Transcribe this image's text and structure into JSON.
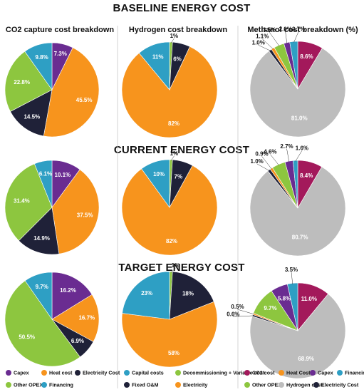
{
  "sections": [
    {
      "title": "BASELINE ENERGY COST"
    },
    {
      "title": "CURRENT ENERGY COST"
    },
    {
      "title": "TARGET ENERGY COST"
    }
  ],
  "column_titles": [
    "CO2 capture cost breakdown",
    "Hydrogen cost breakdown",
    "Methanol cost breakdown (%)"
  ],
  "legends": [
    [
      {
        "label": "Capex",
        "color": "#6a2c91"
      },
      {
        "label": "Heat cost",
        "color": "#f7941d"
      },
      {
        "label": "Electricity Cost",
        "color": "#1f2138"
      },
      {
        "label": "Other OPEX",
        "color": "#8dc63f"
      },
      {
        "label": "Financing",
        "color": "#2e9fc4"
      }
    ],
    [
      {
        "label": "Capital costs",
        "color": "#2e9fc4"
      },
      {
        "label": "Decommissioning + Variable cost",
        "color": "#8dc63f"
      },
      {
        "label": "Fixed O&M",
        "color": "#1f2138"
      },
      {
        "label": "Electricity",
        "color": "#f7941d"
      }
    ],
    [
      {
        "label": "CO2 cost",
        "color": "#a3195b"
      },
      {
        "label": "Heat Cost",
        "color": "#f7941d"
      },
      {
        "label": "Capex",
        "color": "#6a2c91"
      },
      {
        "label": "Financing",
        "color": "#2e9fc4"
      },
      {
        "label": "Other OPEX",
        "color": "#8dc63f"
      },
      {
        "label": "Hydrogen cost",
        "color": "#bdbdbd"
      },
      {
        "label": "Electricity Cost",
        "color": "#1f2138"
      }
    ]
  ],
  "chart_data": [
    {
      "type": "pie",
      "section": "BASELINE ENERGY COST",
      "title": "CO2 capture cost breakdown",
      "slices": [
        {
          "label": "Capex",
          "value": 7.3,
          "text": "7.3%",
          "color": "#6a2c91"
        },
        {
          "label": "Heat cost",
          "value": 45.5,
          "text": "45.5%",
          "color": "#f7941d"
        },
        {
          "label": "Electricity Cost",
          "value": 14.5,
          "text": "14.5%",
          "color": "#1f2138"
        },
        {
          "label": "Other OPEX",
          "value": 22.8,
          "text": "22.8%",
          "color": "#8dc63f"
        },
        {
          "label": "Financing",
          "value": 9.8,
          "text": "9.8%",
          "color": "#2e9fc4"
        }
      ]
    },
    {
      "type": "pie",
      "section": "BASELINE ENERGY COST",
      "title": "Hydrogen cost breakdown",
      "slices": [
        {
          "label": "Decommissioning + Variable cost",
          "value": 1,
          "text": "1%",
          "color": "#8dc63f"
        },
        {
          "label": "Fixed O&M",
          "value": 6,
          "text": "6%",
          "color": "#1f2138"
        },
        {
          "label": "Electricity",
          "value": 82,
          "text": "82%",
          "color": "#f7941d"
        },
        {
          "label": "Capital costs",
          "value": 11,
          "text": "11%",
          "color": "#2e9fc4"
        }
      ]
    },
    {
      "type": "pie",
      "section": "BASELINE ENERGY COST",
      "title": "Methanol cost breakdown (%)",
      "slices": [
        {
          "label": "CO2 cost",
          "value": 8.6,
          "text": "8.6%",
          "color": "#a3195b"
        },
        {
          "label": "Hydrogen cost",
          "value": 81.0,
          "text": "81.0%",
          "color": "#bdbdbd"
        },
        {
          "label": "Electricity Cost",
          "value": 1.0,
          "text": "1.0%",
          "color": "#1f2138"
        },
        {
          "label": "Heat Cost",
          "value": 1.1,
          "text": "1.1%",
          "color": "#f7941d"
        },
        {
          "label": "Other OPEX",
          "value": 3.5,
          "text": "3.5%",
          "color": "#8dc63f"
        },
        {
          "label": "Capex",
          "value": 2.0,
          "text": "2.0%",
          "color": "#6a2c91"
        },
        {
          "label": "Financing",
          "value": 2.7,
          "text": "2.7%",
          "color": "#2e9fc4"
        }
      ]
    },
    {
      "type": "pie",
      "section": "CURRENT ENERGY COST",
      "title": "CO2 capture cost breakdown",
      "slices": [
        {
          "label": "Capex",
          "value": 10.1,
          "text": "10.1%",
          "color": "#6a2c91"
        },
        {
          "label": "Heat cost",
          "value": 37.5,
          "text": "37.5%",
          "color": "#f7941d"
        },
        {
          "label": "Electricity Cost",
          "value": 14.9,
          "text": "14.9%",
          "color": "#1f2138"
        },
        {
          "label": "Other OPEX",
          "value": 31.4,
          "text": "31.4%",
          "color": "#8dc63f"
        },
        {
          "label": "Financing",
          "value": 6.1,
          "text": "6.1%",
          "color": "#2e9fc4"
        }
      ]
    },
    {
      "type": "pie",
      "section": "CURRENT ENERGY COST",
      "title": "Hydrogen cost breakdown",
      "slices": [
        {
          "label": "Decommissioning + Variable cost",
          "value": 1,
          "text": "1%",
          "color": "#8dc63f"
        },
        {
          "label": "Fixed O&M",
          "value": 7,
          "text": "7%",
          "color": "#1f2138"
        },
        {
          "label": "Electricity",
          "value": 82,
          "text": "82%",
          "color": "#f7941d"
        },
        {
          "label": "Capital costs",
          "value": 10,
          "text": "10%",
          "color": "#2e9fc4"
        }
      ]
    },
    {
      "type": "pie",
      "section": "CURRENT ENERGY COST",
      "title": "Methanol cost breakdown (%)",
      "slices": [
        {
          "label": "CO2 cost",
          "value": 8.4,
          "text": "8.4%",
          "color": "#a3195b"
        },
        {
          "label": "Hydrogen cost",
          "value": 80.7,
          "text": "80.7%",
          "color": "#bdbdbd"
        },
        {
          "label": "Electricity Cost",
          "value": 1.0,
          "text": "1.0%",
          "color": "#1f2138"
        },
        {
          "label": "Heat Cost",
          "value": 0.9,
          "text": "0.9%",
          "color": "#f7941d"
        },
        {
          "label": "Other OPEX",
          "value": 4.6,
          "text": "4.6%",
          "color": "#8dc63f"
        },
        {
          "label": "Capex",
          "value": 2.7,
          "text": "2.7%",
          "color": "#6a2c91"
        },
        {
          "label": "Financing",
          "value": 1.6,
          "text": "1.6%",
          "color": "#2e9fc4"
        }
      ]
    },
    {
      "type": "pie",
      "section": "TARGET ENERGY COST",
      "title": "CO2 capture cost breakdown",
      "slices": [
        {
          "label": "Capex",
          "value": 16.2,
          "text": "16.2%",
          "color": "#6a2c91"
        },
        {
          "label": "Heat cost",
          "value": 16.7,
          "text": "16.7%",
          "color": "#f7941d"
        },
        {
          "label": "Electricity Cost",
          "value": 6.9,
          "text": "6.9%",
          "color": "#1f2138"
        },
        {
          "label": "Other OPEX",
          "value": 50.5,
          "text": "50.5%",
          "color": "#8dc63f"
        },
        {
          "label": "Financing",
          "value": 9.7,
          "text": "9.7%",
          "color": "#2e9fc4"
        }
      ]
    },
    {
      "type": "pie",
      "section": "TARGET ENERGY COST",
      "title": "Hydrogen cost breakdown",
      "slices": [
        {
          "label": "Decommissioning + Variable cost",
          "value": 1,
          "text": "1%",
          "color": "#8dc63f"
        },
        {
          "label": "Fixed O&M",
          "value": 18,
          "text": "18%",
          "color": "#1f2138"
        },
        {
          "label": "Electricity",
          "value": 58,
          "text": "58%",
          "color": "#f7941d"
        },
        {
          "label": "Capital costs",
          "value": 23,
          "text": "23%",
          "color": "#2e9fc4"
        }
      ]
    },
    {
      "type": "pie",
      "section": "TARGET ENERGY COST",
      "title": "Methanol cost breakdown (%)",
      "slices": [
        {
          "label": "CO2 cost",
          "value": 11.0,
          "text": "11.0%",
          "color": "#a3195b"
        },
        {
          "label": "Hydrogen cost",
          "value": 68.9,
          "text": "68.9%",
          "color": "#bdbdbd"
        },
        {
          "label": "Electricity Cost",
          "value": 0.6,
          "text": "0.6%",
          "color": "#1f2138"
        },
        {
          "label": "Heat Cost",
          "value": 0.5,
          "text": "0.5%",
          "color": "#f7941d"
        },
        {
          "label": "Other OPEX",
          "value": 9.7,
          "text": "9.7%",
          "color": "#8dc63f"
        },
        {
          "label": "Capex",
          "value": 5.8,
          "text": "5.8%",
          "color": "#6a2c91"
        },
        {
          "label": "Financing",
          "value": 3.5,
          "text": "3.5%",
          "color": "#2e9fc4"
        }
      ]
    }
  ]
}
